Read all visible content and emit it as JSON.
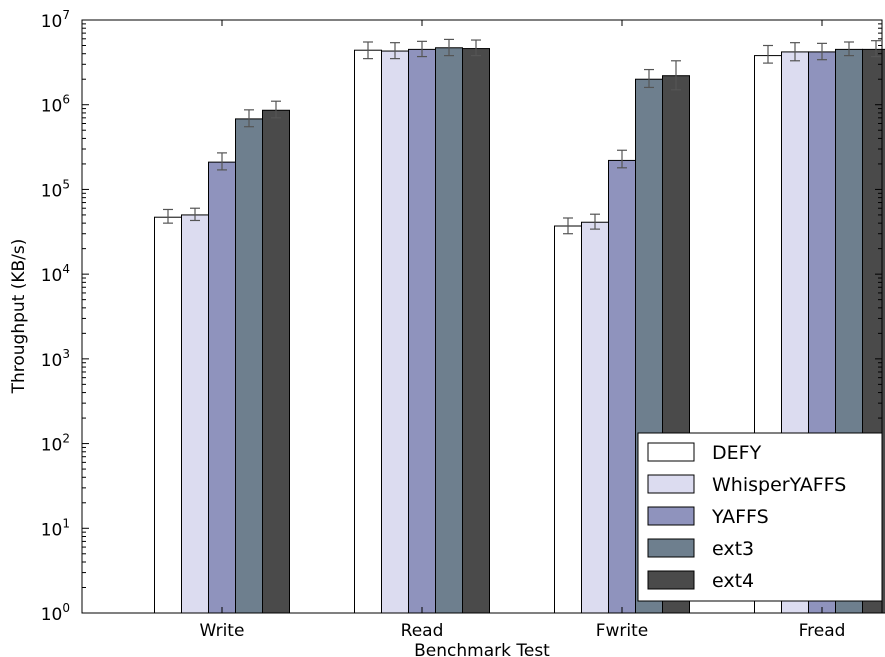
{
  "chart_data": {
    "type": "bar",
    "xlabel": "Benchmark Test",
    "ylabel": "Throughput (KB/s)",
    "yscale": "log",
    "ylim": [
      1,
      10000000
    ],
    "grid": false,
    "legend_position": "lower-right",
    "categories": [
      "Write",
      "Read",
      "Fwrite",
      "Fread"
    ],
    "yticks": [
      {
        "value": 1,
        "base": "10",
        "exp": "0"
      },
      {
        "value": 10,
        "base": "10",
        "exp": "1"
      },
      {
        "value": 100,
        "base": "10",
        "exp": "2"
      },
      {
        "value": 1000,
        "base": "10",
        "exp": "3"
      },
      {
        "value": 10000,
        "base": "10",
        "exp": "4"
      },
      {
        "value": 100000,
        "base": "10",
        "exp": "5"
      },
      {
        "value": 1000000,
        "base": "10",
        "exp": "6"
      },
      {
        "value": 10000000,
        "base": "10",
        "exp": "7"
      }
    ],
    "series": [
      {
        "name": "DEFY",
        "color": "#ffffff",
        "values": [
          47000,
          4400000,
          37000,
          3800000
        ],
        "err_low": [
          40000,
          3500000,
          30000,
          3100000
        ],
        "err_high": [
          58000,
          5500000,
          46000,
          5000000
        ]
      },
      {
        "name": "WhisperYAFFS",
        "color": "#dcdcf0",
        "values": [
          50000,
          4300000,
          41000,
          4200000
        ],
        "err_low": [
          43000,
          3500000,
          34000,
          3300000
        ],
        "err_high": [
          60000,
          5400000,
          51000,
          5400000
        ]
      },
      {
        "name": "YAFFS",
        "color": "#8f93bd",
        "values": [
          210000,
          4500000,
          220000,
          4200000
        ],
        "err_low": [
          170000,
          3700000,
          180000,
          3400000
        ],
        "err_high": [
          270000,
          5600000,
          290000,
          5300000
        ]
      },
      {
        "name": "ext3",
        "color": "#6e7f8e",
        "values": [
          680000,
          4700000,
          2000000,
          4500000
        ],
        "err_low": [
          550000,
          3800000,
          1600000,
          3800000
        ],
        "err_high": [
          870000,
          5900000,
          2600000,
          5500000
        ]
      },
      {
        "name": "ext4",
        "color": "#4a4a4a",
        "values": [
          860000,
          4600000,
          2200000,
          4500000
        ],
        "err_low": [
          700000,
          3800000,
          1500000,
          3700000
        ],
        "err_high": [
          1100000,
          5800000,
          3300000,
          5700000
        ]
      }
    ]
  }
}
